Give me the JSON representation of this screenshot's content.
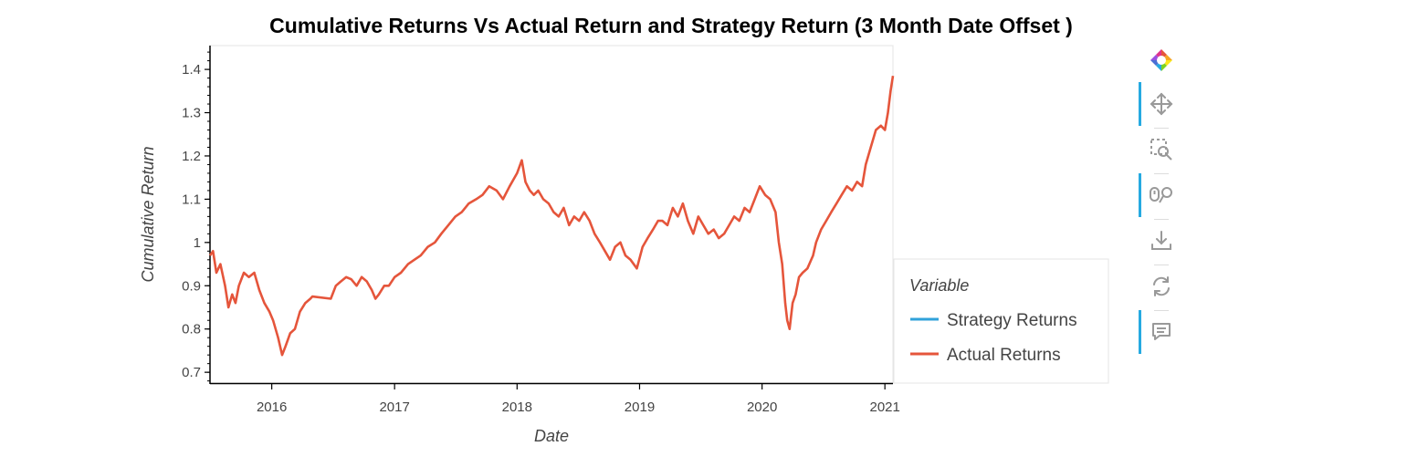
{
  "chart_data": {
    "type": "line",
    "title": "Cumulative Returns Vs Actual Return and Strategy Return (3 Month Date Offset )",
    "xlabel": "Date",
    "ylabel": "Cumulative Return",
    "xlim": [
      "2015-07-01",
      "2021-01-25"
    ],
    "ylim": [
      0.675,
      1.455
    ],
    "x_ticks": [
      "2016",
      "2017",
      "2018",
      "2019",
      "2020",
      "2021"
    ],
    "y_ticks": [
      "0.7",
      "0.8",
      "0.9",
      "1",
      "1.1",
      "1.2",
      "1.3",
      "1.4"
    ],
    "legend": {
      "title": "Variable",
      "placement": "right",
      "entries": [
        "Strategy Returns",
        "Actual Returns"
      ]
    },
    "series": [
      {
        "name": "Strategy Returns",
        "color": "#30a2da",
        "x": [
          "2015-07-01",
          "2021-01-25"
        ],
        "y": [
          0.97,
          1.385
        ],
        "note_hidden": true
      },
      {
        "name": "Actual Returns",
        "color": "#e5553b",
        "x": [
          "2015-07-01",
          "2015-07-10",
          "2015-07-20",
          "2015-08-01",
          "2015-08-15",
          "2015-08-25",
          "2015-09-05",
          "2015-09-15",
          "2015-09-25",
          "2015-10-10",
          "2015-10-25",
          "2015-11-10",
          "2015-11-25",
          "2015-12-10",
          "2015-12-25",
          "2016-01-05",
          "2016-01-20",
          "2016-02-01",
          "2016-02-11",
          "2016-02-25",
          "2016-03-10",
          "2016-03-25",
          "2016-04-10",
          "2016-04-25",
          "2016-05-01",
          "2016-06-25",
          "2016-07-10",
          "2016-07-25",
          "2016-08-10",
          "2016-08-25",
          "2016-09-10",
          "2016-09-25",
          "2016-10-10",
          "2016-10-25",
          "2016-11-05",
          "2016-11-15",
          "2016-12-01",
          "2016-12-15",
          "2017-01-01",
          "2017-01-20",
          "2017-02-10",
          "2017-03-01",
          "2017-03-20",
          "2017-04-10",
          "2017-05-01",
          "2017-05-20",
          "2017-06-10",
          "2017-07-01",
          "2017-07-20",
          "2017-08-10",
          "2017-09-01",
          "2017-09-20",
          "2017-10-10",
          "2017-11-01",
          "2017-11-20",
          "2017-12-10",
          "2018-01-01",
          "2018-01-15",
          "2018-01-26",
          "2018-02-08",
          "2018-02-20",
          "2018-03-05",
          "2018-03-20",
          "2018-04-05",
          "2018-04-20",
          "2018-05-05",
          "2018-05-20",
          "2018-06-05",
          "2018-06-20",
          "2018-07-05",
          "2018-07-20",
          "2018-08-05",
          "2018-08-20",
          "2018-09-05",
          "2018-09-20",
          "2018-10-05",
          "2018-10-20",
          "2018-11-05",
          "2018-11-20",
          "2018-12-05",
          "2018-12-24",
          "2019-01-10",
          "2019-01-25",
          "2019-02-10",
          "2019-02-25",
          "2019-03-10",
          "2019-03-25",
          "2019-04-10",
          "2019-04-25",
          "2019-05-10",
          "2019-05-25",
          "2019-06-10",
          "2019-06-25",
          "2019-07-10",
          "2019-07-25",
          "2019-08-10",
          "2019-08-25",
          "2019-09-10",
          "2019-09-25",
          "2019-10-10",
          "2019-10-25",
          "2019-11-10",
          "2019-11-25",
          "2019-12-10",
          "2019-12-25",
          "2020-01-10",
          "2020-01-25",
          "2020-02-10",
          "2020-02-20",
          "2020-03-01",
          "2020-03-10",
          "2020-03-16",
          "2020-03-23",
          "2020-04-01",
          "2020-04-10",
          "2020-04-20",
          "2020-05-01",
          "2020-05-15",
          "2020-06-01",
          "2020-06-10",
          "2020-06-25",
          "2020-07-10",
          "2020-07-25",
          "2020-08-10",
          "2020-08-25",
          "2020-09-10",
          "2020-09-25",
          "2020-10-10",
          "2020-10-25",
          "2020-11-05",
          "2020-11-20",
          "2020-12-05",
          "2020-12-20",
          "2021-01-01",
          "2021-01-10",
          "2021-01-18",
          "2021-01-25"
        ],
        "y": [
          0.97,
          0.98,
          0.93,
          0.95,
          0.9,
          0.85,
          0.88,
          0.86,
          0.9,
          0.93,
          0.92,
          0.93,
          0.89,
          0.86,
          0.84,
          0.82,
          0.78,
          0.74,
          0.76,
          0.79,
          0.8,
          0.84,
          0.86,
          0.87,
          0.875,
          0.87,
          0.9,
          0.91,
          0.92,
          0.915,
          0.9,
          0.92,
          0.91,
          0.89,
          0.87,
          0.88,
          0.9,
          0.9,
          0.92,
          0.93,
          0.95,
          0.96,
          0.97,
          0.99,
          1.0,
          1.02,
          1.04,
          1.06,
          1.07,
          1.09,
          1.1,
          1.11,
          1.13,
          1.12,
          1.1,
          1.13,
          1.16,
          1.19,
          1.14,
          1.12,
          1.11,
          1.12,
          1.1,
          1.09,
          1.07,
          1.06,
          1.08,
          1.04,
          1.06,
          1.05,
          1.07,
          1.05,
          1.02,
          1.0,
          0.98,
          0.96,
          0.99,
          1.0,
          0.97,
          0.96,
          0.94,
          0.99,
          1.01,
          1.03,
          1.05,
          1.05,
          1.04,
          1.08,
          1.06,
          1.09,
          1.05,
          1.02,
          1.06,
          1.04,
          1.02,
          1.03,
          1.01,
          1.02,
          1.04,
          1.06,
          1.05,
          1.08,
          1.07,
          1.1,
          1.13,
          1.11,
          1.1,
          1.07,
          1.0,
          0.95,
          0.86,
          0.82,
          0.8,
          0.86,
          0.88,
          0.92,
          0.93,
          0.94,
          0.97,
          1.0,
          1.03,
          1.05,
          1.07,
          1.09,
          1.11,
          1.13,
          1.12,
          1.14,
          1.13,
          1.18,
          1.22,
          1.26,
          1.27,
          1.26,
          1.3,
          1.35,
          1.385
        ]
      }
    ]
  },
  "toolbar": {
    "logo_icon": "bokeh-logo",
    "tools": [
      "pan-tool-icon",
      "box-zoom-icon",
      "wheel-zoom-icon",
      "save-icon",
      "reset-icon",
      "hover-icon"
    ],
    "accent_color": "#26aae1"
  }
}
